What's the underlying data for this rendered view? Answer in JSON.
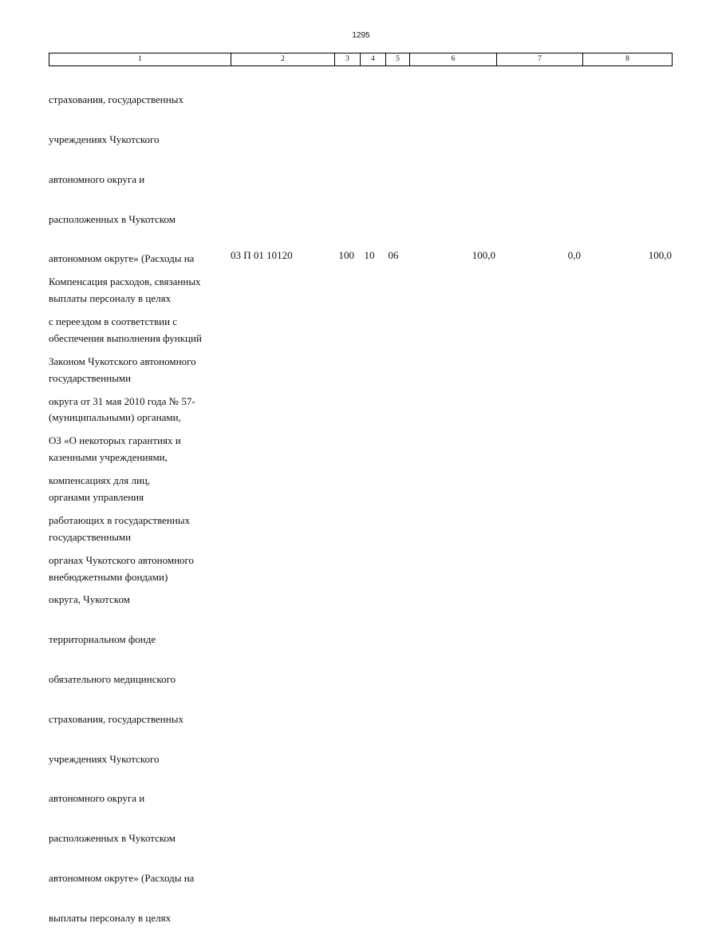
{
  "page_number": "1295",
  "header": {
    "columns": [
      "1",
      "2",
      "3",
      "4",
      "5",
      "6",
      "7",
      "8"
    ]
  },
  "continued_text": {
    "lines": [
      "страхования, государственных",
      "учреждениях Чукотского",
      "автономного округа и",
      "расположенных в Чукотском",
      "автономном округе» (Расходы на",
      "выплаты персоналу в целях",
      "обеспечения выполнения функций",
      "государственными",
      "(муниципальными) органами,",
      "казенными учреждениями,",
      "органами управления",
      "государственными",
      "внебюджетными фондами)"
    ]
  },
  "row": {
    "name_lines": [
      "Компенсация расходов, связанных",
      "с переездом в соответствии с",
      "Законом Чукотского автономного",
      "округа от 31 мая 2010 года № 57-",
      "ОЗ «О некоторых гарантиях и",
      "компенсациях для лиц,",
      "работающих в государственных",
      "органах Чукотского автономного",
      "округа, Чукотском",
      "территориальном фонде",
      "обязательного медицинского",
      "страхования, государственных",
      "учреждениях Чукотского",
      "автономного округа и",
      "расположенных в Чукотском",
      "автономном округе» (Расходы на",
      "выплаты персоналу в целях"
    ],
    "code": "03 П 01 10120",
    "col3": "100",
    "col4": "10",
    "col5": "06",
    "col6": "100,0",
    "col7": "0,0",
    "col8": "100,0"
  }
}
